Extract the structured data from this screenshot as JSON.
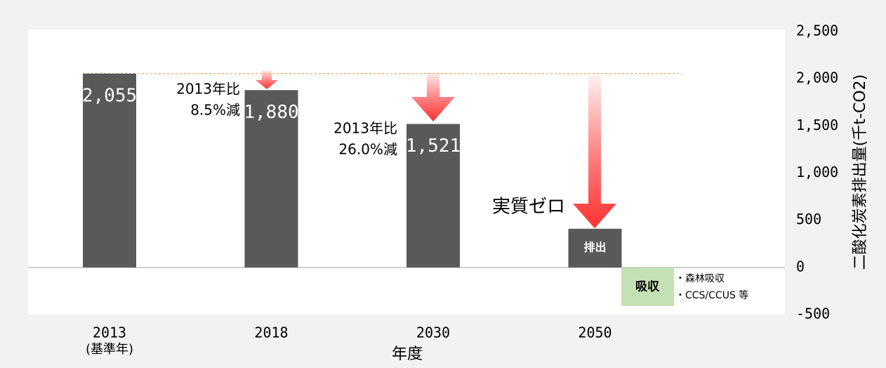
{
  "chart_data": {
    "type": "bar",
    "categories": [
      "2013",
      "2018",
      "2030",
      "2050"
    ],
    "base_year_note": "(基準年)",
    "series": [
      {
        "name": "排出",
        "color": "#595959",
        "values": [
          2055,
          1880,
          1521,
          410
        ],
        "value_labels": [
          "2,055",
          "1,880",
          "1,521",
          "排出"
        ]
      }
    ],
    "absorption": {
      "label": "吸収",
      "value": -410,
      "color": "#c5e0b4",
      "notes": [
        "・森林吸収",
        "・CCS/CCUS 等"
      ]
    },
    "annotations": [
      [
        "2013年比",
        "8.5%減"
      ],
      [
        "2013年比",
        "26.0%減"
      ],
      [
        "実質ゼロ"
      ]
    ],
    "xlabel": "年度",
    "ylabel": "二酸化炭素排出量(千t-CO2)",
    "ylim": [
      -500,
      2500
    ],
    "yticks": [
      -500,
      0,
      500,
      {
        "value": 1000,
        "label": "1,000"
      },
      {
        "value": 1500,
        "label": "1,500"
      },
      {
        "value": 2000,
        "label": "2,000"
      },
      {
        "value": 2500,
        "label": "2,500"
      }
    ],
    "reference_line_color": "#f4b183"
  }
}
